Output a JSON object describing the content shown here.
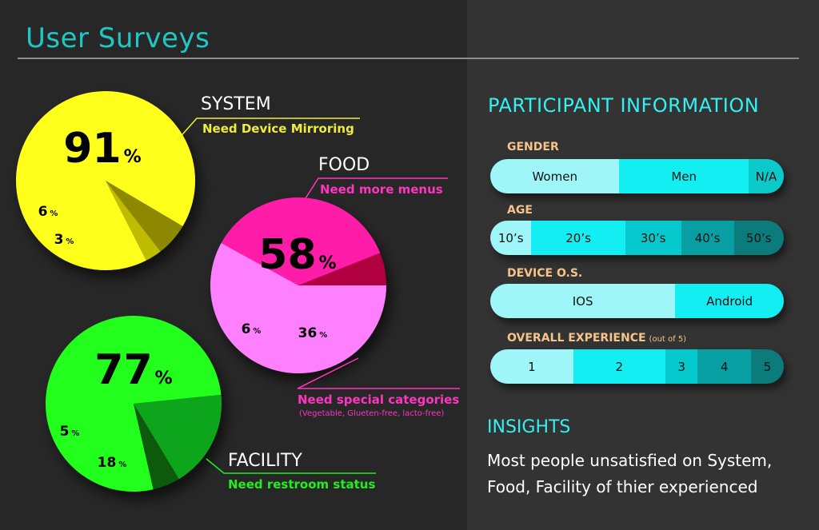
{
  "title": "User Surveys",
  "chart_data": [
    {
      "type": "pie",
      "heading": "SYSTEM",
      "subtitle": "Need Device Mirroring",
      "detail": "",
      "slices": [
        {
          "value": 91,
          "label": "91",
          "color": "#ffff1e"
        },
        {
          "value": 6,
          "label": "6",
          "color": "#8c8900"
        },
        {
          "value": 3,
          "label": "3",
          "color": "#bfbc00"
        }
      ],
      "accent": "#f0ec3a"
    },
    {
      "type": "pie",
      "heading": "FOOD",
      "subtitle": "Need more menus",
      "detail": "(Vegetable, Glueten-free, lacto-free)",
      "second_subtitle": "Need special categories",
      "slices": [
        {
          "value": 58,
          "label": "58",
          "color": "#ff80ff"
        },
        {
          "value": 36,
          "label": "36",
          "color": "#ff1ea8"
        },
        {
          "value": 6,
          "label": "6",
          "color": "#b0003f"
        }
      ],
      "accent": "#ff34c0"
    },
    {
      "type": "pie",
      "heading": "FACILITY",
      "subtitle": "Need restroom status",
      "detail": "",
      "slices": [
        {
          "value": 77,
          "label": "77",
          "color": "#22ff1e"
        },
        {
          "value": 18,
          "label": "18",
          "color": "#0aa51c"
        },
        {
          "value": 5,
          "label": "5",
          "color": "#0e5a10"
        }
      ],
      "accent": "#22ee1e"
    }
  ],
  "percent_sign": "%",
  "participant": {
    "title": "PARTICIPANT INFORMATION",
    "bars": [
      {
        "label": "GENDER",
        "note": "",
        "segments": [
          {
            "label": "Women",
            "value": 44,
            "color": "#9ef6f8"
          },
          {
            "label": "Men",
            "value": 44,
            "color": "#12eef2"
          },
          {
            "label": "N/A",
            "value": 12,
            "color": "#0cc9cc"
          }
        ]
      },
      {
        "label": "AGE",
        "note": "",
        "segments": [
          {
            "label": "10’s",
            "value": 14,
            "color": "#9ef6f8"
          },
          {
            "label": "20’s",
            "value": 32,
            "color": "#12eef2"
          },
          {
            "label": "30’s",
            "value": 19,
            "color": "#06c9cd"
          },
          {
            "label": "40’s",
            "value": 18,
            "color": "#079fa2"
          },
          {
            "label": "50’s",
            "value": 17,
            "color": "#0b7b7b"
          }
        ]
      },
      {
        "label": "DEVICE O.S.",
        "note": "",
        "segments": [
          {
            "label": "IOS",
            "value": 63,
            "color": "#9ef6f8"
          },
          {
            "label": "Android",
            "value": 37,
            "color": "#12eef2"
          }
        ]
      },
      {
        "label": "OVERALL EXPERIENCE",
        "note": "(out of 5)",
        "segments": [
          {
            "label": "1",
            "value": 28,
            "color": "#9ef6f8"
          },
          {
            "label": "2",
            "value": 31,
            "color": "#12eef2"
          },
          {
            "label": "3",
            "value": 11,
            "color": "#06c9cd"
          },
          {
            "label": "4",
            "value": 18,
            "color": "#079fa2"
          },
          {
            "label": "5",
            "value": 11,
            "color": "#0b7b7b"
          }
        ]
      }
    ]
  },
  "insights": {
    "title": "INSIGHTS",
    "text": "Most people unsatisfied on System, Food, Facility of thier experienced"
  }
}
